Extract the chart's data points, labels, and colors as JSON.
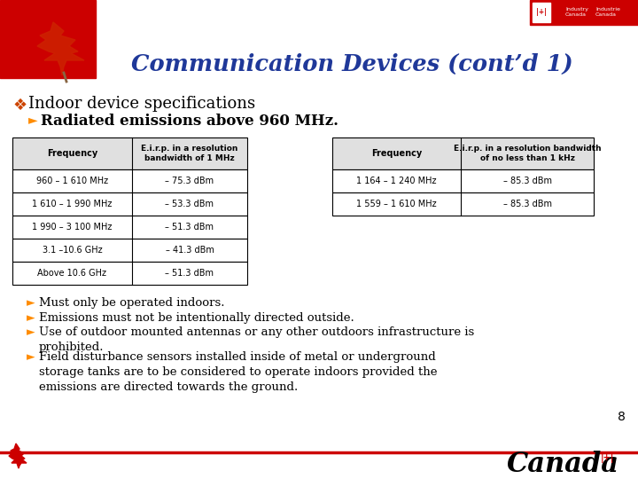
{
  "title": "Communication Devices (cont’d 1)",
  "title_color": "#1F3899",
  "background_color": "#FFFFFF",
  "header_bg_color": "#CC0000",
  "bullet1": "Indoor device specifications",
  "subbullet1": "Radiated emissions above 960 MHz.",
  "table1_headers": [
    "Frequency",
    "E.i.r.p. in a resolution\nbandwidth of 1 MHz"
  ],
  "table1_rows": [
    [
      "960 – 1 610 MHz",
      "– 75.3 dBm"
    ],
    [
      "1 610 – 1 990 MHz",
      "– 53.3 dBm"
    ],
    [
      "1 990 – 3 100 MHz",
      "– 51.3 dBm"
    ],
    [
      "3.1 –10.6 GHz",
      "– 41.3 dBm"
    ],
    [
      "Above 10.6 GHz",
      "– 51.3 dBm"
    ]
  ],
  "table2_headers": [
    "Frequency",
    "E.i.r.p. in a resolution bandwidth\nof no less than 1 kHz"
  ],
  "table2_rows": [
    [
      "1 164 – 1 240 MHz",
      "– 85.3 dBm"
    ],
    [
      "1 559 – 1 610 MHz",
      "– 85.3 dBm"
    ]
  ],
  "bullets": [
    "Must only be operated indoors.",
    "Emissions must not be intentionally directed outside.",
    "Use of outdoor mounted antennas or any other outdoors infrastructure is\nprohibited.",
    "Field disturbance sensors installed inside of metal or underground\nstorage tanks are to be considered to operate indoors provided the\nemissions are directed towards the ground."
  ],
  "page_number": "8",
  "arrow_color": "#FF8C00",
  "text_color": "#000000",
  "table_header_bg": "#E0E0E0",
  "bottom_line_color": "#CC0000"
}
